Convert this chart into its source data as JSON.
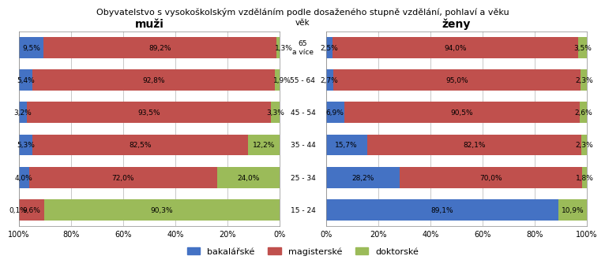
{
  "title": "Obyvatelstvo s vysokoškolským vzděláním podle dosaženého stupně vzdělání, pohlaví a věku",
  "age_groups": [
    "15 - 24",
    "25 - 34",
    "35 - 44",
    "45 - 54",
    "55 - 64",
    "65\na více"
  ],
  "age_groups_mid": [
    "15 - 24",
    "25 - 34",
    "35 - 44",
    "45 - 54",
    "55 - 64",
    "65\na více"
  ],
  "muzi": {
    "label": "muži",
    "doktorske": [
      90.3,
      24.0,
      12.2,
      3.3,
      1.9,
      1.3
    ],
    "magisterske": [
      9.6,
      72.0,
      82.5,
      93.5,
      92.8,
      89.2
    ],
    "bakalarske": [
      0.1,
      4.0,
      5.3,
      3.2,
      5.4,
      9.5
    ]
  },
  "zeny": {
    "label": "ženy",
    "bakalarske": [
      89.1,
      28.2,
      15.7,
      6.9,
      2.7,
      2.5
    ],
    "magisterske": [
      0.0,
      70.0,
      82.1,
      90.5,
      95.0,
      94.0
    ],
    "doktorske": [
      10.9,
      1.8,
      2.3,
      2.6,
      2.3,
      3.5
    ]
  },
  "colors": {
    "bakalarske": "#4472C4",
    "magisterske": "#C0504D",
    "doktorske": "#9BBB59"
  },
  "legend_labels": [
    "bakalářské",
    "magisterské",
    "doktorské"
  ],
  "vek_label": "věk",
  "muzi_texts": {
    "doktorske": [
      "90,3%",
      "24,0%",
      "12,2%",
      "3,3%",
      "1,9%",
      "1,3%"
    ],
    "magisterske": [
      "9,6%",
      "72,0%",
      "82,5%",
      "93,5%",
      "92,8%",
      "89,2%"
    ],
    "bakalarske": [
      "0,1%",
      "4,0%",
      "5,3%",
      "3,2%",
      "5,4%",
      "9,5%"
    ]
  },
  "zeny_texts": {
    "bakalarske": [
      "89,1%",
      "28,2%",
      "15,7%",
      "6,9%",
      "2,7%",
      "2,5%"
    ],
    "magisterske": [
      "",
      "70,0%",
      "82,1%",
      "90,5%",
      "95,0%",
      "94,0%"
    ],
    "doktorske": [
      "10,9%",
      "1,8%",
      "2,3%",
      "2,6%",
      "2,3%",
      "3,5%"
    ]
  }
}
